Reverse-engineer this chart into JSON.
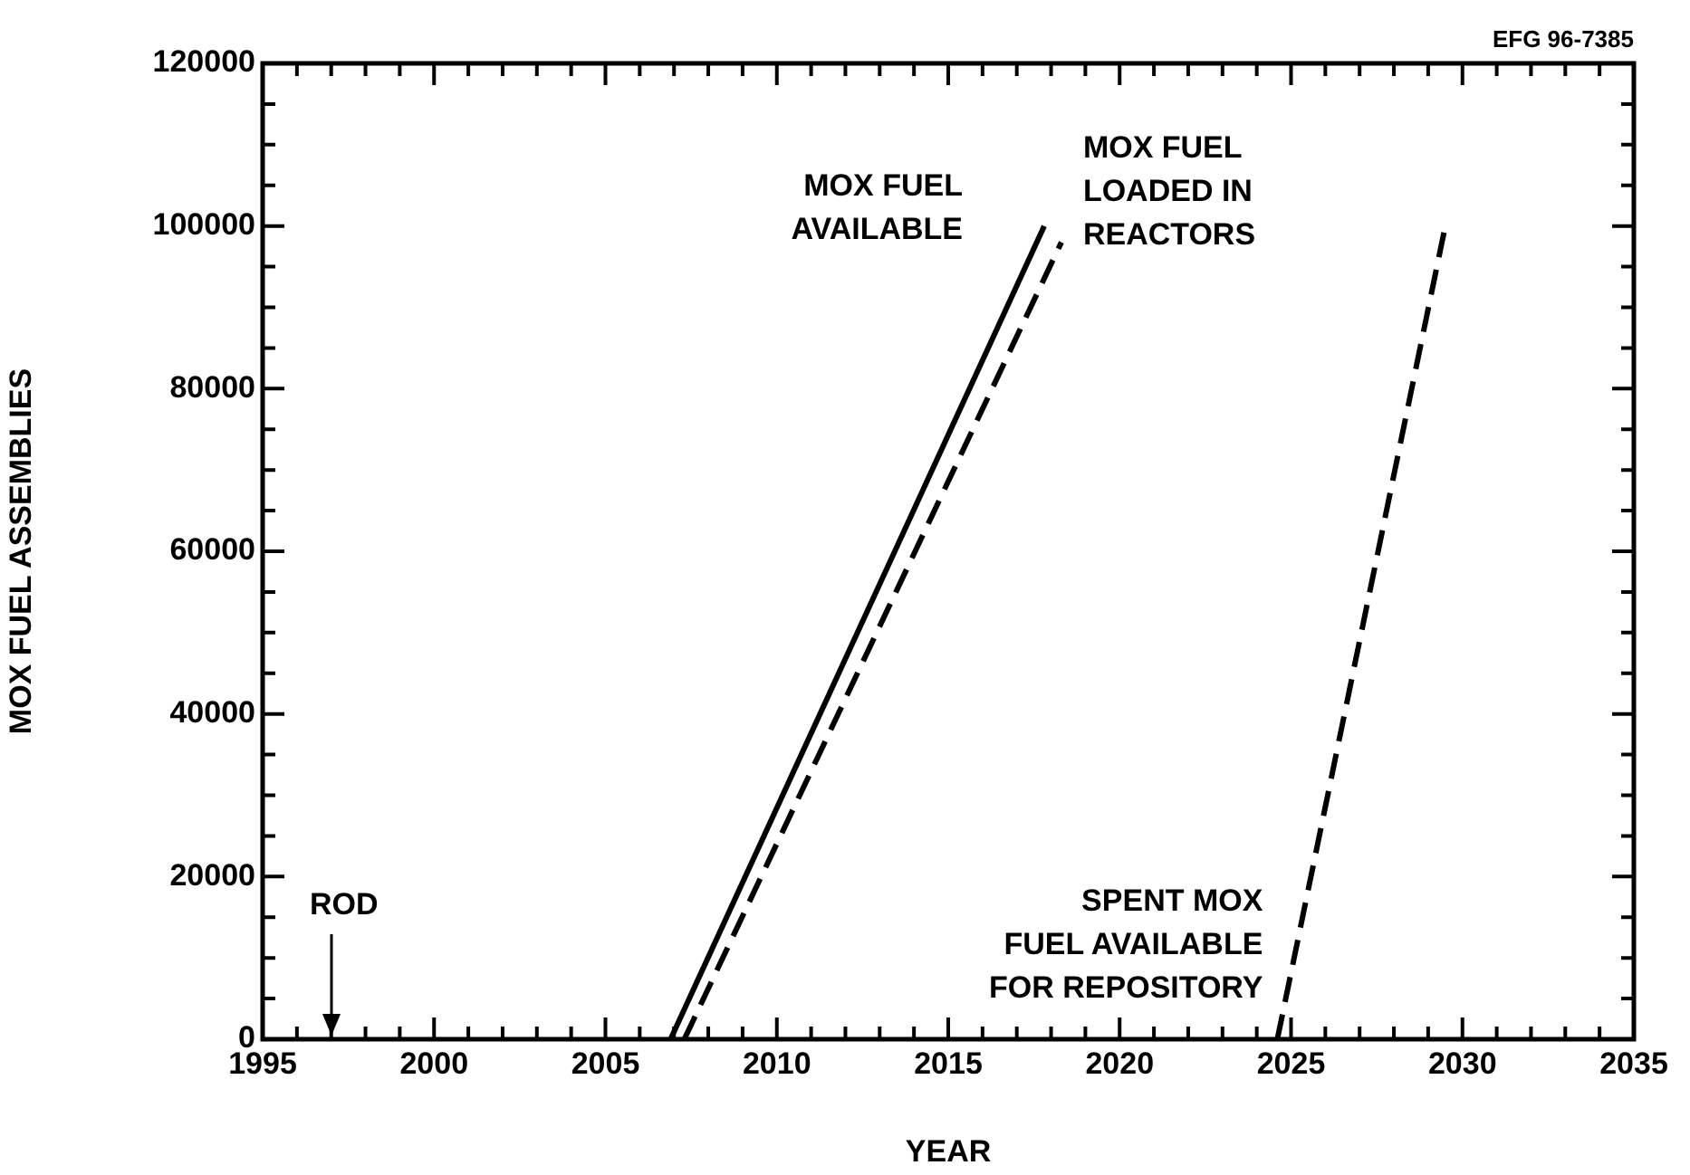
{
  "chart_data": {
    "type": "line",
    "xlabel": "YEAR",
    "ylabel": "MOX FUEL ASSEMBLIES",
    "xlim": [
      1995,
      2035
    ],
    "xticks": [
      1995,
      {
        "value": 1996,
        "label": null
      },
      {
        "value": 1997,
        "label": null
      },
      {
        "value": 1998,
        "label": null
      },
      {
        "value": 1999,
        "label": null
      },
      2000,
      {
        "value": 2001,
        "label": null
      },
      {
        "value": 2002,
        "label": null
      },
      {
        "value": 2003,
        "label": null
      },
      {
        "value": 2004,
        "label": null
      },
      2005,
      {
        "value": 2006,
        "label": null
      },
      {
        "value": 2007,
        "label": null
      },
      {
        "value": 2008,
        "label": null
      },
      {
        "value": 2009,
        "label": null
      },
      2010,
      {
        "value": 2011,
        "label": null
      },
      {
        "value": 2012,
        "label": null
      },
      {
        "value": 2013,
        "label": null
      },
      {
        "value": 2014,
        "label": null
      },
      2015,
      {
        "value": 2016,
        "label": null
      },
      {
        "value": 2017,
        "label": null
      },
      {
        "value": 2018,
        "label": null
      },
      {
        "value": 2019,
        "label": null
      },
      2020,
      {
        "value": 2021,
        "label": null
      },
      {
        "value": 2022,
        "label": null
      },
      {
        "value": 2023,
        "label": null
      },
      {
        "value": 2024,
        "label": null
      },
      2025,
      {
        "value": 2026,
        "label": null
      },
      {
        "value": 2027,
        "label": null
      },
      {
        "value": 2028,
        "label": null
      },
      {
        "value": 2029,
        "label": null
      },
      2030,
      {
        "value": 2031,
        "label": null
      },
      {
        "value": 2032,
        "label": null
      },
      {
        "value": 2033,
        "label": null
      },
      {
        "value": 2034,
        "label": null
      },
      2035
    ],
    "ylim": [
      0,
      120000
    ],
    "yticks": [
      0,
      {
        "value": 5000,
        "label": null
      },
      {
        "value": 10000,
        "label": null
      },
      {
        "value": 15000,
        "label": null
      },
      20000,
      {
        "value": 25000,
        "label": null
      },
      {
        "value": 30000,
        "label": null
      },
      {
        "value": 35000,
        "label": null
      },
      40000,
      {
        "value": 45000,
        "label": null
      },
      {
        "value": 50000,
        "label": null
      },
      {
        "value": 55000,
        "label": null
      },
      60000,
      {
        "value": 65000,
        "label": null
      },
      {
        "value": 70000,
        "label": null
      },
      {
        "value": 75000,
        "label": null
      },
      80000,
      {
        "value": 85000,
        "label": null
      },
      {
        "value": 90000,
        "label": null
      },
      {
        "value": 95000,
        "label": null
      },
      100000,
      {
        "value": 105000,
        "label": null
      },
      {
        "value": 110000,
        "label": null
      },
      {
        "value": 115000,
        "label": null
      },
      120000
    ],
    "grid": false,
    "legend": false,
    "marker": "none",
    "series": [
      {
        "name": "MOX FUEL\nAVAILABLE",
        "color": "#000000",
        "line_style": "solid",
        "x": [
          2006.9,
          2017.8
        ],
        "values": [
          0,
          100000
        ]
      },
      {
        "name": "MOX FUEL\nLOADED IN\nREACTORS",
        "color": "#000000",
        "line_style": "dashed",
        "x": [
          2007.3,
          2018.3
        ],
        "values": [
          0,
          98000
        ]
      },
      {
        "name": "SPENT MOX\nFUEL AVAILABLE\nFOR REPOSITORY",
        "color": "#000000",
        "line_style": "dashed",
        "x": [
          2024.6,
          2029.5
        ],
        "values": [
          0,
          100000
        ]
      }
    ],
    "annotations": [
      "EFG 96-7385",
      "ROD"
    ]
  }
}
